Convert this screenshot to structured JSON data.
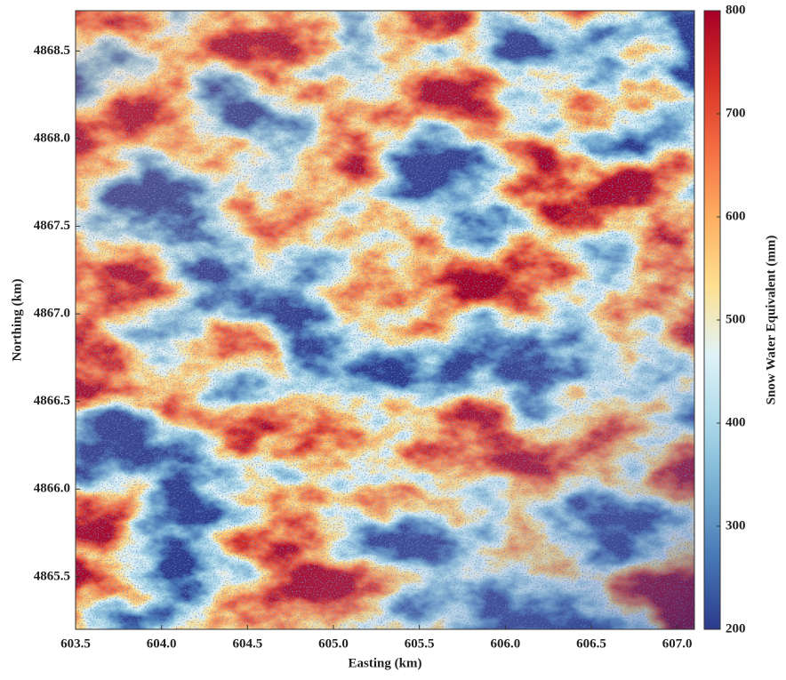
{
  "chart_data": {
    "type": "heatmap",
    "xlabel": "Easting (km)",
    "ylabel": "Northing (km)",
    "colorbar_label": "Snow Water Equivalent (mm)",
    "xlim": [
      603.5,
      607.1
    ],
    "xticks": [
      603.5,
      {
        "value": 604,
        "label": "604.0"
      },
      604.5,
      {
        "value": 605,
        "label": "605.0"
      },
      605.5,
      {
        "value": 606,
        "label": "606.0"
      },
      606.5,
      {
        "value": 607,
        "label": "607.0"
      }
    ],
    "ylim": [
      4865.2,
      4868.73
    ],
    "yticks": [
      4865.5,
      {
        "value": 4866,
        "label": "4866.0"
      },
      4866.5,
      {
        "value": 4867,
        "label": "4867.0"
      },
      4867.5,
      {
        "value": 4868,
        "label": "4868.0"
      },
      4868.5
    ],
    "clim": [
      200,
      800
    ],
    "cticks": [
      200,
      300,
      400,
      500,
      600,
      700,
      800
    ],
    "colormap": [
      "#2b3a8c",
      "#4575b4",
      "#74add1",
      "#abd9e9",
      "#e0f3f8",
      "#fee090",
      "#fdae61",
      "#f46d43",
      "#d73027",
      "#a50026"
    ]
  }
}
